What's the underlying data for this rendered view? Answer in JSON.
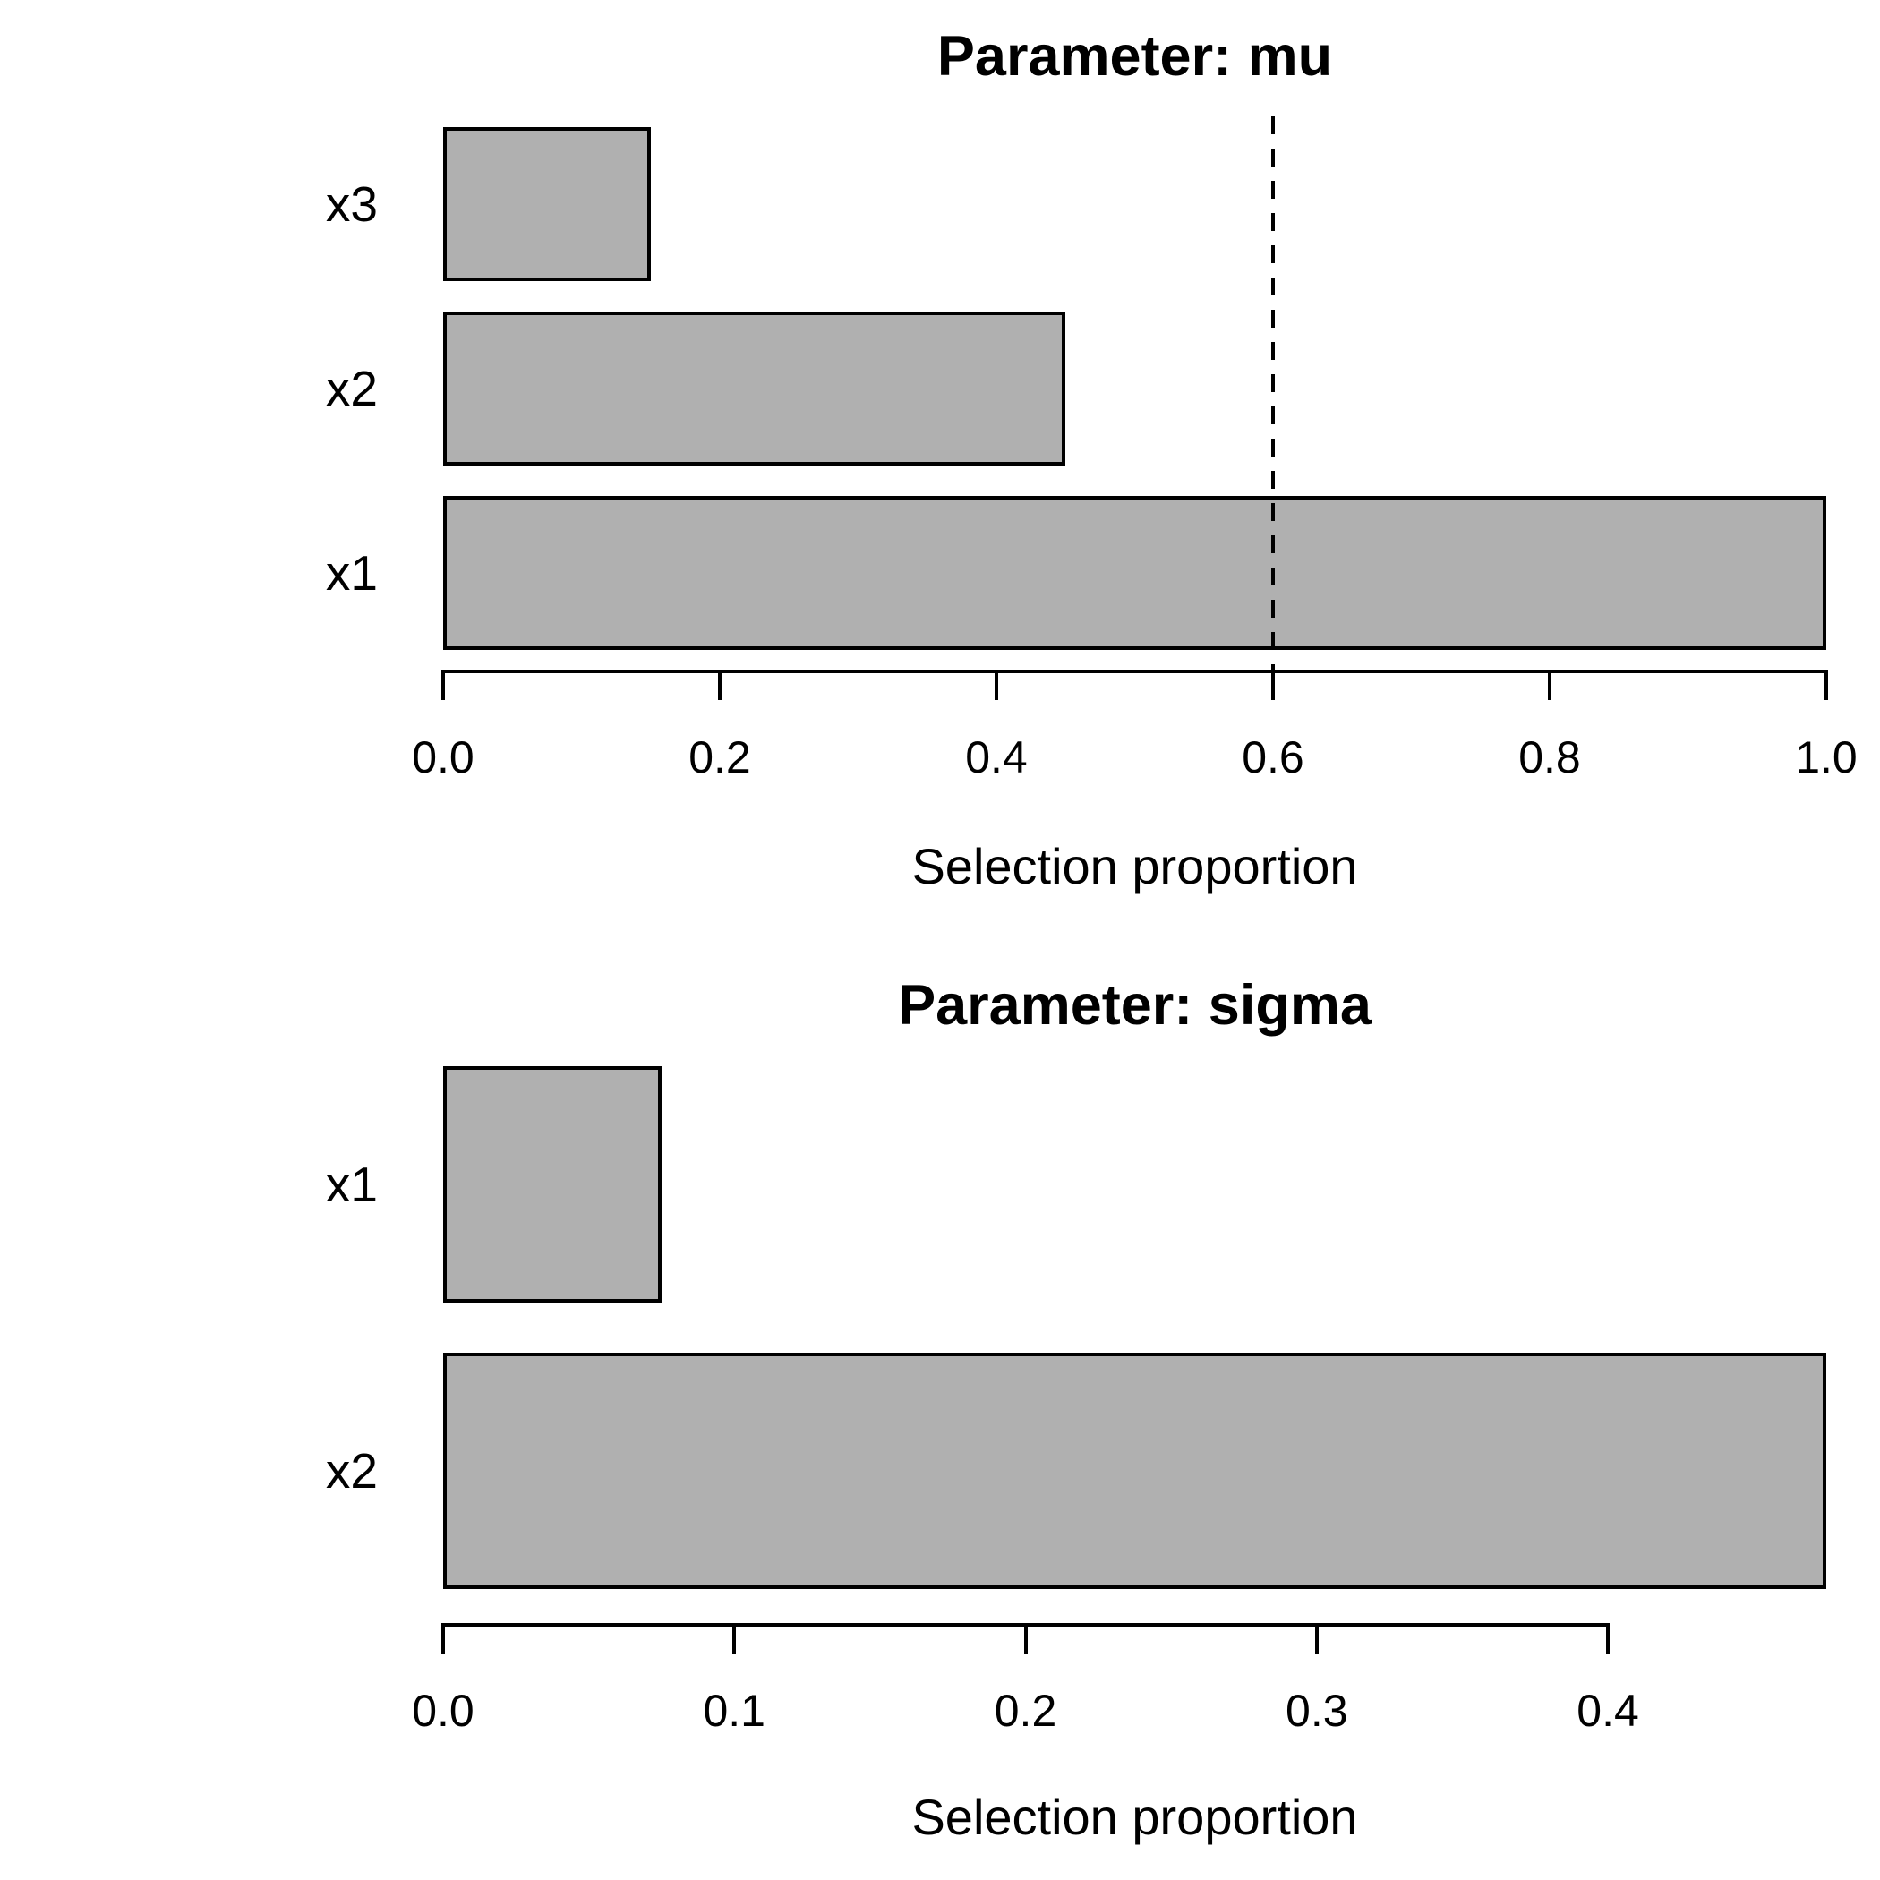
{
  "figure_title": "",
  "chart_data": [
    {
      "type": "bar",
      "orientation": "horizontal",
      "title": "Parameter: mu",
      "xlabel": "Selection proportion",
      "categories": [
        "x3",
        "x2",
        "x1"
      ],
      "values": [
        0.15,
        0.45,
        1.0
      ],
      "xlim": [
        0,
        1.0
      ],
      "xtick_values": [
        0,
        0.2,
        0.4,
        0.6,
        0.8,
        1.0
      ],
      "xtick_labels": [
        "0.0",
        "0.2",
        "0.4",
        "0.6",
        "0.8",
        "1.0"
      ],
      "threshold": 0.6,
      "threshold_style": "dashed",
      "bar_fill": "#b0b0b0",
      "bar_border": "#000000",
      "grid": false,
      "legend": null
    },
    {
      "type": "bar",
      "orientation": "horizontal",
      "title": "Parameter: sigma",
      "xlabel": "Selection proportion",
      "categories": [
        "x1",
        "x2"
      ],
      "values": [
        0.075,
        0.475
      ],
      "xlim": [
        0,
        0.475
      ],
      "xtick_values": [
        0,
        0.1,
        0.2,
        0.3,
        0.4
      ],
      "xtick_labels": [
        "0.0",
        "0.1",
        "0.2",
        "0.3",
        "0.4"
      ],
      "threshold": null,
      "threshold_style": null,
      "bar_fill": "#b0b0b0",
      "bar_border": "#000000",
      "grid": false,
      "legend": null
    }
  ]
}
